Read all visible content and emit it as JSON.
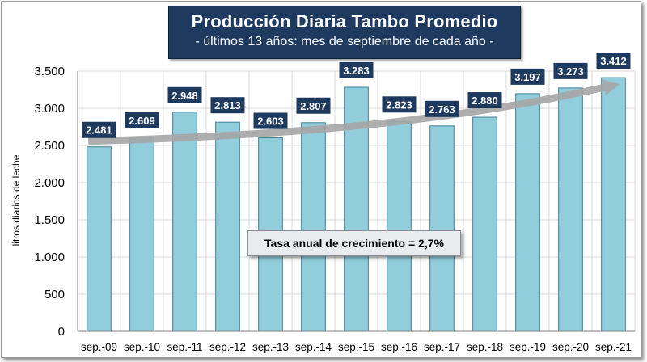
{
  "header": {
    "title": "Producción Diaria Tambo Promedio",
    "subtitle": "- últimos 13 años: mes de septiembre de cada año -"
  },
  "annotation": "Tasa anual de crecimiento = 2,7%",
  "colors": {
    "bar_fill": "#92cddc",
    "bar_stroke": "#3f7f97",
    "label_bg": "#1f3a5f",
    "trend_arrow": "#a6a6a6",
    "grid": "#d9d9d9"
  },
  "chart_data": {
    "type": "bar",
    "title": "Producción Diaria Tambo Promedio",
    "subtitle": "- últimos 13 años: mes de septiembre de cada año -",
    "xlabel": "",
    "ylabel": "litros diarios de leche",
    "categories": [
      "sep.-09",
      "sep.-10",
      "sep.-11",
      "sep.-12",
      "sep.-13",
      "sep.-14",
      "sep.-15",
      "sep.-16",
      "sep.-17",
      "sep.-18",
      "sep.-19",
      "sep.-20",
      "sep.-21"
    ],
    "values": [
      2481,
      2609,
      2948,
      2813,
      2603,
      2807,
      3283,
      2823,
      2763,
      2880,
      3197,
      3273,
      3412
    ],
    "value_labels": [
      "2.481",
      "2.609",
      "2.948",
      "2.813",
      "2.603",
      "2.807",
      "3.283",
      "2.823",
      "2.763",
      "2.880",
      "3.197",
      "3.273",
      "3.412"
    ],
    "ylim": [
      0,
      3500
    ],
    "yticks": [
      0,
      500,
      1000,
      1500,
      2000,
      2500,
      3000,
      3500
    ],
    "ytick_labels": [
      "0",
      "500",
      "1.000",
      "1.500",
      "2.000",
      "2.500",
      "3.000",
      "3.500"
    ],
    "grid": true,
    "legend": "none",
    "trend_arrow": {
      "from_value": 2481,
      "to_value": 3412
    }
  }
}
